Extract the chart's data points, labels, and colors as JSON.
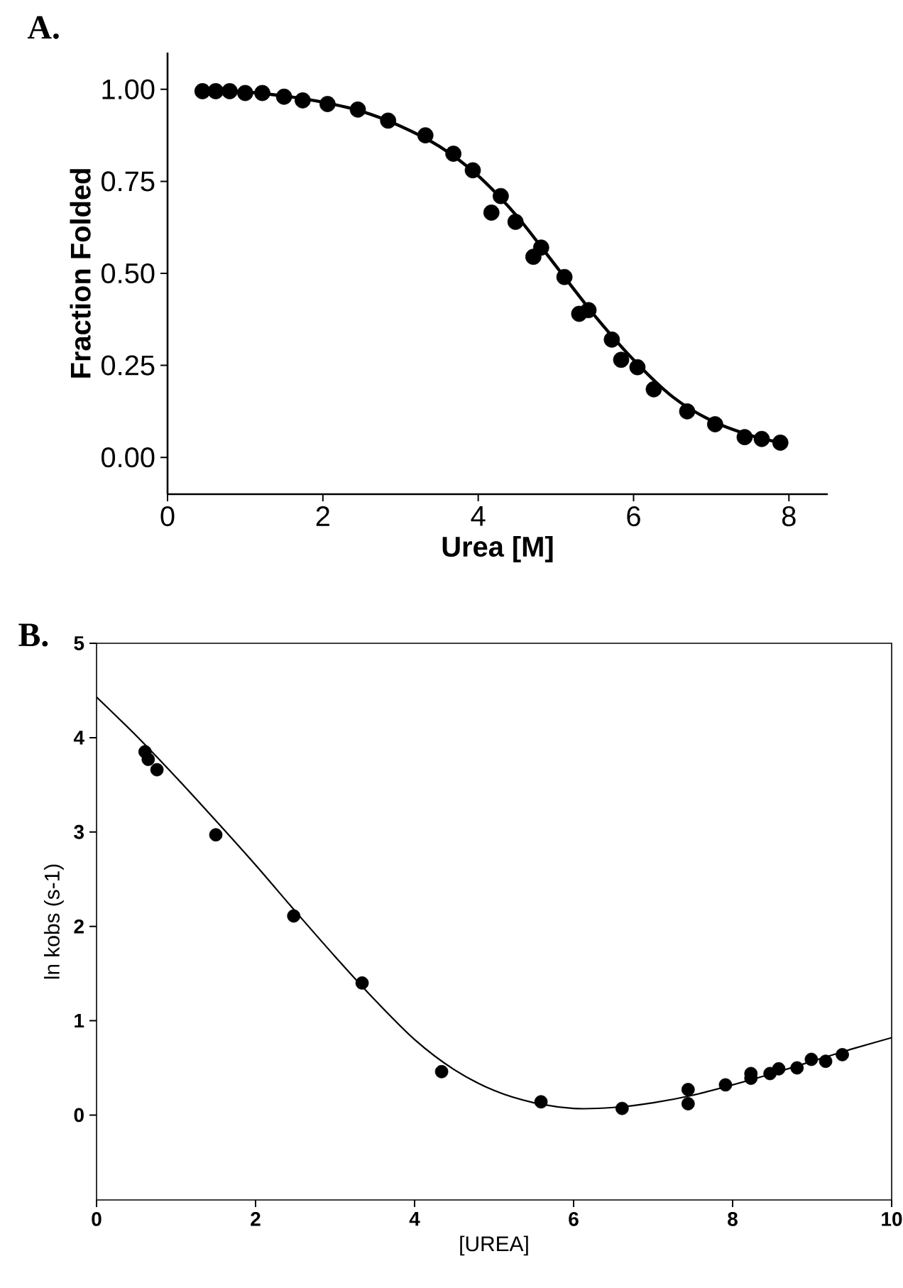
{
  "chart_data": [
    {
      "type": "scatter",
      "title": "A.",
      "xlabel": "Urea [M]",
      "ylabel": "Fraction Folded",
      "marker": "circle",
      "xlim": [
        0,
        8.5
      ],
      "ylim": [
        -0.1,
        1.1
      ],
      "xticks": [
        0,
        2,
        4,
        6,
        8
      ],
      "yticks": [
        {
          "value": 0,
          "label": "0.00"
        },
        {
          "value": 0.25,
          "label": "0.25"
        },
        {
          "value": 0.5,
          "label": "0.50"
        },
        {
          "value": 0.75,
          "label": "0.75"
        },
        {
          "value": 1,
          "label": "1.00"
        }
      ],
      "series": [
        {
          "color": "#000000",
          "x": [
            0.45,
            0.62,
            0.8,
            1.0,
            1.22,
            1.5,
            1.74,
            2.06,
            2.45,
            2.84,
            3.32,
            3.68,
            3.93,
            4.17,
            4.29,
            4.48,
            4.71,
            4.81,
            5.11,
            5.3,
            5.42,
            5.72,
            5.84,
            6.05,
            6.26,
            6.69,
            7.05,
            7.43,
            7.65,
            7.89
          ],
          "values": [
            0.995,
            0.995,
            0.995,
            0.99,
            0.99,
            0.98,
            0.97,
            0.96,
            0.945,
            0.915,
            0.875,
            0.825,
            0.78,
            0.665,
            0.71,
            0.64,
            0.545,
            0.57,
            0.49,
            0.39,
            0.4,
            0.32,
            0.265,
            0.245,
            0.185,
            0.125,
            0.09,
            0.055,
            0.05,
            0.04
          ]
        },
        {
          "type": "line",
          "marker": "none",
          "color": "#000000",
          "x": [
            0.45,
            1.0,
            1.5,
            2.0,
            2.5,
            3.0,
            3.5,
            4.0,
            4.5,
            5.0,
            5.5,
            6.0,
            6.5,
            7.0,
            7.5,
            7.9
          ],
          "values": [
            0.998,
            0.993,
            0.982,
            0.965,
            0.94,
            0.9,
            0.845,
            0.765,
            0.655,
            0.52,
            0.385,
            0.265,
            0.165,
            0.1,
            0.06,
            0.04
          ]
        }
      ]
    },
    {
      "type": "scatter",
      "title": "B.",
      "xlabel": "[UREA]",
      "ylabel": "ln kobs (s-1)",
      "marker": "circle",
      "xlim": [
        0,
        10
      ],
      "ylim": [
        -0.9,
        5
      ],
      "xticks": [
        0,
        2,
        4,
        6,
        8,
        10
      ],
      "yticks": [
        0,
        1,
        2,
        3,
        4,
        5
      ],
      "series": [
        {
          "color": "#000000",
          "x": [
            0.61,
            0.65,
            0.76,
            1.5,
            2.48,
            3.34,
            4.34,
            5.59,
            6.61,
            7.44,
            7.44,
            7.91,
            8.23,
            8.23,
            8.47,
            8.58,
            8.81,
            8.99,
            9.17,
            9.38
          ],
          "values": [
            3.85,
            3.77,
            3.66,
            2.97,
            2.11,
            1.4,
            0.46,
            0.14,
            0.07,
            0.27,
            0.12,
            0.32,
            0.44,
            0.39,
            0.44,
            0.49,
            0.5,
            0.59,
            0.57,
            0.64
          ]
        },
        {
          "type": "line",
          "marker": "none",
          "color": "#000000",
          "x": [
            0,
            0.5,
            1,
            1.5,
            2,
            2.5,
            3,
            3.5,
            4,
            4.5,
            5,
            5.5,
            6,
            6.5,
            7,
            7.5,
            8,
            8.5,
            9,
            9.5,
            10
          ],
          "values": [
            4.43,
            4.02,
            3.58,
            3.12,
            2.65,
            2.16,
            1.68,
            1.22,
            0.8,
            0.48,
            0.26,
            0.13,
            0.07,
            0.08,
            0.13,
            0.21,
            0.32,
            0.44,
            0.57,
            0.7,
            0.82
          ]
        }
      ]
    }
  ]
}
